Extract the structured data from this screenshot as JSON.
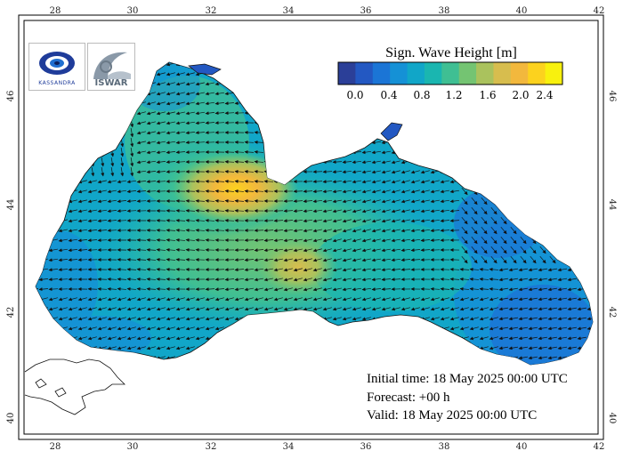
{
  "legend": {
    "title": "Sign. Wave Height [m]",
    "tick_labels": [
      "0.0",
      "0.4",
      "0.8",
      "1.2",
      "1.6",
      "2.0",
      "2.4"
    ],
    "colors": [
      "#2b3f98",
      "#2358c2",
      "#1b75d6",
      "#1591d6",
      "#11a6c8",
      "#1ab6b0",
      "#3fbf93",
      "#74c472",
      "#aac25d",
      "#d7bd4e",
      "#f2b83d",
      "#fcd21e",
      "#f8f10e"
    ]
  },
  "axes": {
    "lon_labels": [
      "28",
      "30",
      "32",
      "34",
      "36",
      "38",
      "40",
      "42"
    ],
    "lat_labels": [
      "40",
      "42",
      "44",
      "46"
    ]
  },
  "info": {
    "initial_time": "Initial time: 18 May 2025 00:00 UTC",
    "forecast": "Forecast: +00 h",
    "valid": "Valid: 18 May 2025 00:00 UTC"
  },
  "logos": {
    "left": {
      "icon": "kassandra-logo",
      "text": "KASSANDRA"
    },
    "right": {
      "icon": "iswar-logo",
      "text": "ISWAR"
    }
  }
}
